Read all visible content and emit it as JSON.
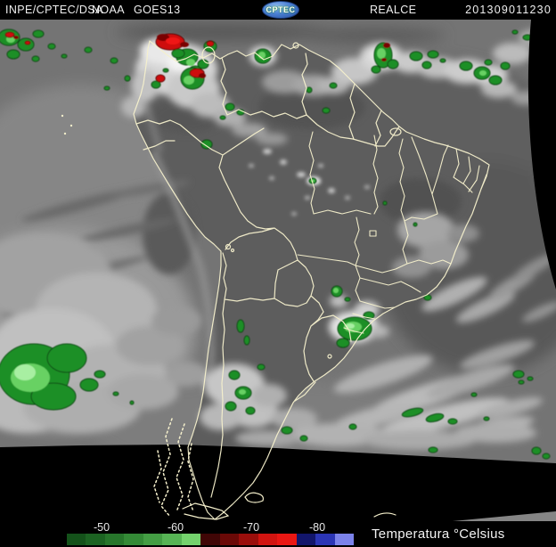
{
  "header": {
    "agency": "INPE/CPTEC/DSA",
    "org": "NOAA",
    "satellite": "GOES13",
    "logo_text": "CPTEC",
    "product": "REALCE",
    "timestamp": "201309011230"
  },
  "scale": {
    "unit_label": "Temperatura °Celsius",
    "ticks": [
      "-50",
      "-60",
      "-70",
      "-80"
    ],
    "colors": [
      "#14521a",
      "#1c6322",
      "#27762b",
      "#348a36",
      "#449e44",
      "#57b455",
      "#74d26d",
      "#400606",
      "#6b0907",
      "#9a0e0b",
      "#d11410",
      "#ea1713",
      "#12166b",
      "#2b35b5",
      "#7b82ea"
    ]
  },
  "map": {
    "border_color": "#f6f1cd",
    "enhancement_green": "#1e8f27",
    "enhancement_green_core": "#67d163",
    "enhancement_red": "#ce0f0e",
    "space_color": "#000000",
    "logo_blue": "#4a7fd4"
  }
}
